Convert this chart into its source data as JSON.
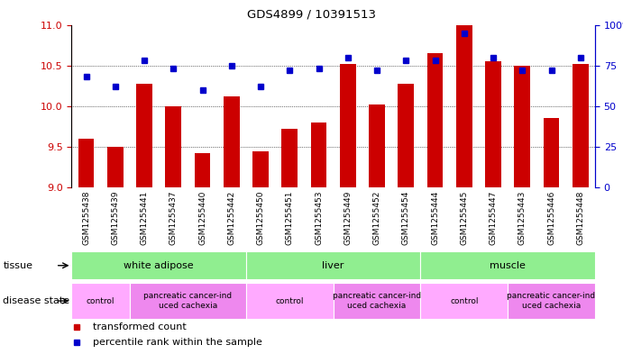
{
  "title": "GDS4899 / 10391513",
  "samples": [
    "GSM1255438",
    "GSM1255439",
    "GSM1255441",
    "GSM1255437",
    "GSM1255440",
    "GSM1255442",
    "GSM1255450",
    "GSM1255451",
    "GSM1255453",
    "GSM1255449",
    "GSM1255452",
    "GSM1255454",
    "GSM1255444",
    "GSM1255445",
    "GSM1255447",
    "GSM1255443",
    "GSM1255446",
    "GSM1255448"
  ],
  "bar_values": [
    9.6,
    9.5,
    10.28,
    10.0,
    9.42,
    10.12,
    9.45,
    9.72,
    9.8,
    10.52,
    10.02,
    10.28,
    10.65,
    11.0,
    10.55,
    10.5,
    9.85,
    10.52
  ],
  "dot_values": [
    68,
    62,
    78,
    73,
    60,
    75,
    62,
    72,
    73,
    80,
    72,
    78,
    78,
    95,
    80,
    72,
    72,
    80
  ],
  "bar_color": "#cc0000",
  "dot_color": "#0000cc",
  "ylim_left": [
    9.0,
    11.0
  ],
  "ylim_right": [
    0,
    100
  ],
  "yticks_left": [
    9.0,
    9.5,
    10.0,
    10.5,
    11.0
  ],
  "yticks_right": [
    0,
    25,
    50,
    75,
    100
  ],
  "grid_values": [
    9.5,
    10.0,
    10.5
  ],
  "tissue_color": "#90ee90",
  "tissue_groups": [
    {
      "label": "white adipose",
      "start": 0,
      "end": 6
    },
    {
      "label": "liver",
      "start": 6,
      "end": 12
    },
    {
      "label": "muscle",
      "start": 12,
      "end": 18
    }
  ],
  "disease_color_control": "#ffaaff",
  "disease_color_cancer": "#ee88ee",
  "disease_groups": [
    {
      "label": "control",
      "start": 0,
      "end": 2,
      "type": "control"
    },
    {
      "label": "pancreatic cancer-ind\nuced cachexia",
      "start": 2,
      "end": 6,
      "type": "cancer"
    },
    {
      "label": "control",
      "start": 6,
      "end": 9,
      "type": "control"
    },
    {
      "label": "pancreatic cancer-ind\nuced cachexia",
      "start": 9,
      "end": 12,
      "type": "cancer"
    },
    {
      "label": "control",
      "start": 12,
      "end": 15,
      "type": "control"
    },
    {
      "label": "pancreatic cancer-ind\nuced cachexia",
      "start": 15,
      "end": 18,
      "type": "cancer"
    }
  ],
  "legend_items": [
    {
      "label": "transformed count",
      "color": "#cc0000"
    },
    {
      "label": "percentile rank within the sample",
      "color": "#0000cc"
    }
  ],
  "tissue_label": "tissue",
  "disease_label": "disease state",
  "background_color": "#ffffff",
  "bar_width": 0.55
}
